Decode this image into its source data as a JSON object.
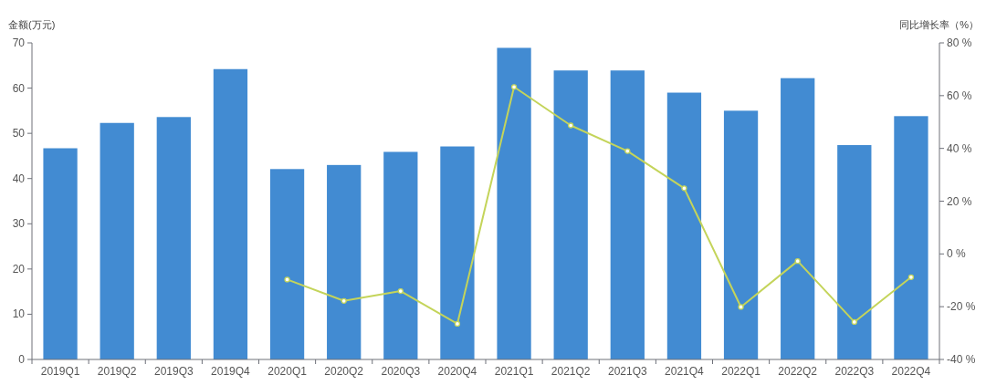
{
  "chart_data": {
    "type": "bar",
    "ylabel": "金额(万元)",
    "y2label": "同比增长率（%）",
    "categories": [
      "2019Q1",
      "2019Q2",
      "2019Q3",
      "2019Q4",
      "2020Q1",
      "2020Q2",
      "2020Q3",
      "2020Q4",
      "2021Q1",
      "2021Q2",
      "2021Q3",
      "2021Q4",
      "2022Q1",
      "2022Q2",
      "2022Q3",
      "2022Q4"
    ],
    "series": [
      {
        "color": "#428bd2",
        "values": [
          46.7,
          52.3,
          53.6,
          64.2,
          42.1,
          43.0,
          45.9,
          47.1,
          68.9,
          63.9,
          63.9,
          59.0,
          55.0,
          62.2,
          47.4,
          53.8
        ]
      },
      {
        "type": "line",
        "axis": "y2",
        "color": "#c4d45a",
        "marker": "circle",
        "line_style": "solid",
        "values": [
          null,
          null,
          null,
          null,
          -9.7,
          -17.8,
          -14.1,
          -26.5,
          63.3,
          48.7,
          39.0,
          24.9,
          -20.1,
          -2.7,
          -25.8,
          -8.8
        ]
      }
    ],
    "ylim": [
      0,
      70
    ],
    "yticks": [
      0,
      10,
      20,
      30,
      40,
      50,
      60,
      70
    ],
    "y2lim": [
      -40,
      80
    ],
    "y2ticks": [
      {
        "value": -40,
        "label": "-40 %"
      },
      {
        "value": -20,
        "label": "-20 %"
      },
      {
        "value": 0,
        "label": "0 %"
      },
      {
        "value": 20,
        "label": "20 %"
      },
      {
        "value": 40,
        "label": "40 %"
      },
      {
        "value": 60,
        "label": "60 %"
      },
      {
        "value": 80,
        "label": "80 %"
      }
    ],
    "grid": false
  }
}
